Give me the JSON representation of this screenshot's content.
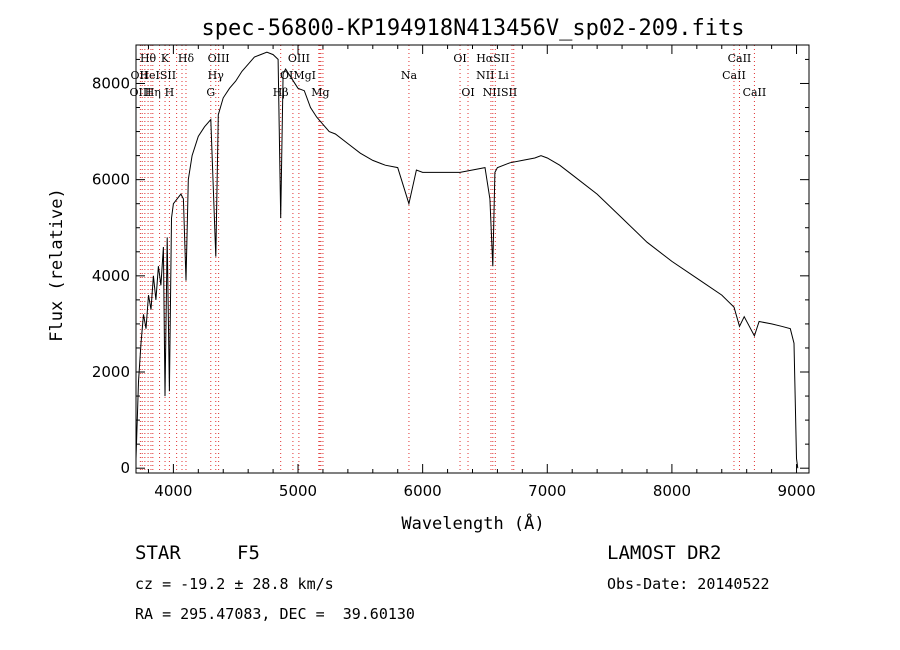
{
  "chart_data": {
    "type": "line",
    "title": "spec-56800-KP194918N413456V_sp02-209.fits",
    "xlabel": "Wavelength (Å)",
    "ylabel": "Flux (relative)",
    "xlim": [
      3700,
      9100
    ],
    "ylim": [
      -100,
      8800
    ],
    "xticks": [
      4000,
      5000,
      6000,
      7000,
      8000,
      9000
    ],
    "yticks": [
      0,
      2000,
      4000,
      6000,
      8000
    ],
    "grid": false,
    "series": [
      {
        "color": "#000000",
        "x": [
          3700,
          3720,
          3740,
          3760,
          3780,
          3800,
          3820,
          3840,
          3860,
          3880,
          3900,
          3920,
          3933,
          3950,
          3968,
          3985,
          4000,
          4030,
          4060,
          4080,
          4101,
          4120,
          4150,
          4200,
          4250,
          4300,
          4340,
          4360,
          4400,
          4450,
          4500,
          4550,
          4600,
          4650,
          4700,
          4750,
          4800,
          4840,
          4861,
          4880,
          4900,
          4950,
          5000,
          5050,
          5100,
          5150,
          5200,
          5250,
          5300,
          5400,
          5500,
          5600,
          5700,
          5800,
          5890,
          5950,
          6000,
          6100,
          6200,
          6300,
          6400,
          6500,
          6540,
          6563,
          6580,
          6600,
          6700,
          6800,
          6900,
          6950,
          7000,
          7100,
          7200,
          7400,
          7600,
          7800,
          8000,
          8200,
          8400,
          8498,
          8542,
          8580,
          8662,
          8700,
          8800,
          8880,
          8950,
          8980,
          9000,
          9010
        ],
        "y": [
          200,
          1800,
          2600,
          3200,
          2900,
          3600,
          3300,
          4000,
          3500,
          4200,
          3800,
          4600,
          1500,
          4800,
          1600,
          5200,
          5500,
          5600,
          5700,
          5600,
          3900,
          6000,
          6500,
          6900,
          7100,
          7250,
          4400,
          7350,
          7700,
          7900,
          8050,
          8250,
          8400,
          8550,
          8600,
          8650,
          8600,
          8500,
          5200,
          8200,
          8300,
          8100,
          7900,
          7850,
          7500,
          7300,
          7150,
          7000,
          6950,
          6750,
          6550,
          6400,
          6300,
          6250,
          5500,
          6200,
          6150,
          6150,
          6150,
          6150,
          6200,
          6250,
          5600,
          4200,
          6150,
          6250,
          6350,
          6400,
          6450,
          6500,
          6450,
          6300,
          6100,
          5700,
          5200,
          4700,
          4300,
          3950,
          3600,
          3350,
          2950,
          3150,
          2750,
          3050,
          3000,
          2950,
          2900,
          2600,
          200,
          0
        ]
      }
    ],
    "lines": {
      "xs": [
        3735,
        3750,
        3771,
        3797,
        3820,
        3835,
        3889,
        3933,
        3968,
        4026,
        4069,
        4101,
        4300,
        4340,
        4363,
        4861,
        4959,
        5007,
        5167,
        5175,
        5184,
        5200,
        5890,
        6300,
        6364,
        6548,
        6563,
        6583,
        6717,
        6731,
        8498,
        8542,
        8662
      ],
      "labels": [
        {
          "text": "Hθ",
          "w": 3797,
          "row": 0
        },
        {
          "text": "K",
          "w": 3933,
          "row": 0
        },
        {
          "text": "Hδ",
          "w": 4101,
          "row": 0
        },
        {
          "text": "OIII",
          "w": 4363,
          "row": 0
        },
        {
          "text": "OIII",
          "w": 5007,
          "row": 0
        },
        {
          "text": "OI",
          "w": 6300,
          "row": 0
        },
        {
          "text": "HαSII",
          "w": 6563,
          "row": 0
        },
        {
          "text": "CaII",
          "w": 8542,
          "row": 0
        },
        {
          "text": "OII",
          "w": 3727,
          "row": 1
        },
        {
          "text": "HeISII",
          "w": 3875,
          "row": 1
        },
        {
          "text": "Hγ",
          "w": 4340,
          "row": 1
        },
        {
          "text": "OIMgI",
          "w": 5000,
          "row": 1
        },
        {
          "text": "Na",
          "w": 5890,
          "row": 1
        },
        {
          "text": "NII Li",
          "w": 6560,
          "row": 1
        },
        {
          "text": "CaII",
          "w": 8498,
          "row": 1
        },
        {
          "text": "OIII",
          "w": 3736,
          "row": 2
        },
        {
          "text": "Hη",
          "w": 3835,
          "row": 2
        },
        {
          "text": "H",
          "w": 3968,
          "row": 2
        },
        {
          "text": "G",
          "w": 4300,
          "row": 2
        },
        {
          "text": "Hβ",
          "w": 4861,
          "row": 2
        },
        {
          "text": "Mg",
          "w": 5180,
          "row": 2
        },
        {
          "text": "OI",
          "w": 6364,
          "row": 2
        },
        {
          "text": "NIISII",
          "w": 6620,
          "row": 2
        },
        {
          "text": "CaII",
          "w": 8662,
          "row": 2
        }
      ]
    }
  },
  "footer": {
    "object_type": "STAR",
    "subclass": "F5",
    "survey": "LAMOST DR2",
    "redshift": "cz = -19.2 ± 28.8 km/s",
    "obs_date": "Obs-Date: 20140522",
    "coords": "RA = 295.47083, DEC =  39.60130"
  }
}
